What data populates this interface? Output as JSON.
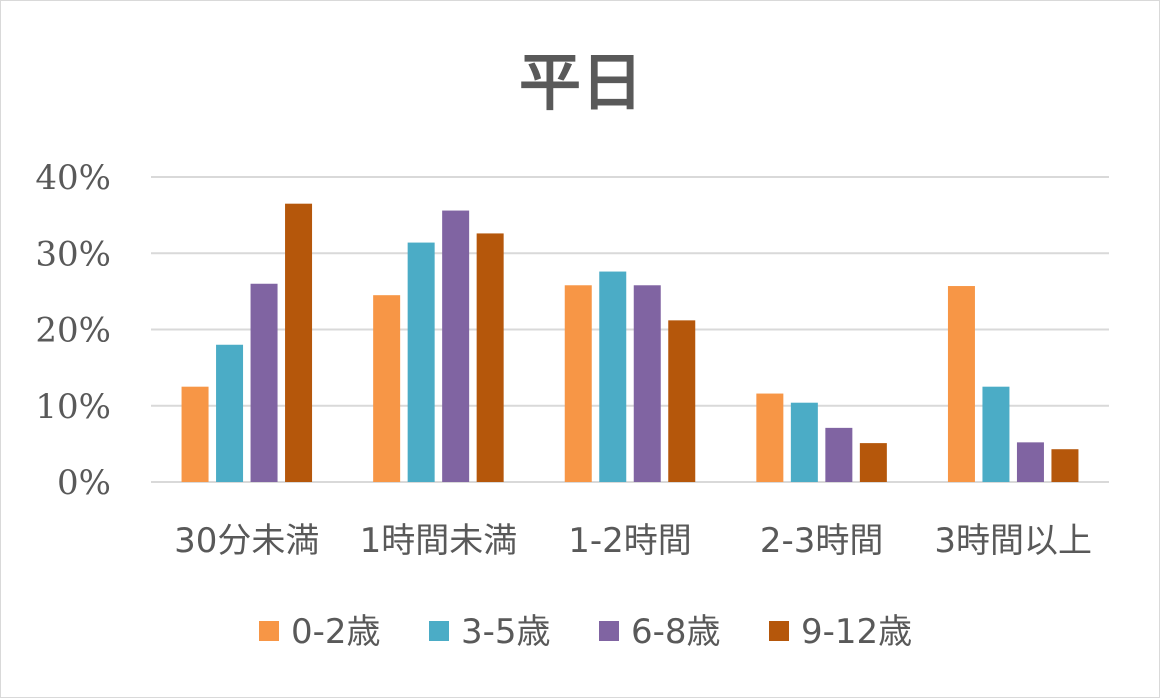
{
  "chart_data": {
    "type": "bar",
    "title": "平日",
    "categories": [
      "30分未満",
      "1時間未満",
      "1-2時間",
      "2-3時間",
      "3時間以上"
    ],
    "series": [
      {
        "name": "0-2歳",
        "color": "#F79646",
        "values": [
          12.5,
          24.5,
          25.8,
          11.6,
          25.7
        ]
      },
      {
        "name": "3-5歳",
        "color": "#4BACC6",
        "values": [
          18.0,
          31.4,
          27.6,
          10.4,
          12.5
        ]
      },
      {
        "name": "6-8歳",
        "color": "#8064A2",
        "values": [
          26.0,
          35.6,
          25.8,
          7.1,
          5.2
        ]
      },
      {
        "name": "9-12歳",
        "color": "#B5570B",
        "values": [
          36.5,
          32.6,
          21.2,
          5.1,
          4.3
        ]
      }
    ],
    "ylim": [
      0,
      40
    ],
    "yticks": [
      "0%",
      "10%",
      "20%",
      "30%",
      "40%"
    ],
    "grid": true,
    "legend_position": "bottom"
  }
}
